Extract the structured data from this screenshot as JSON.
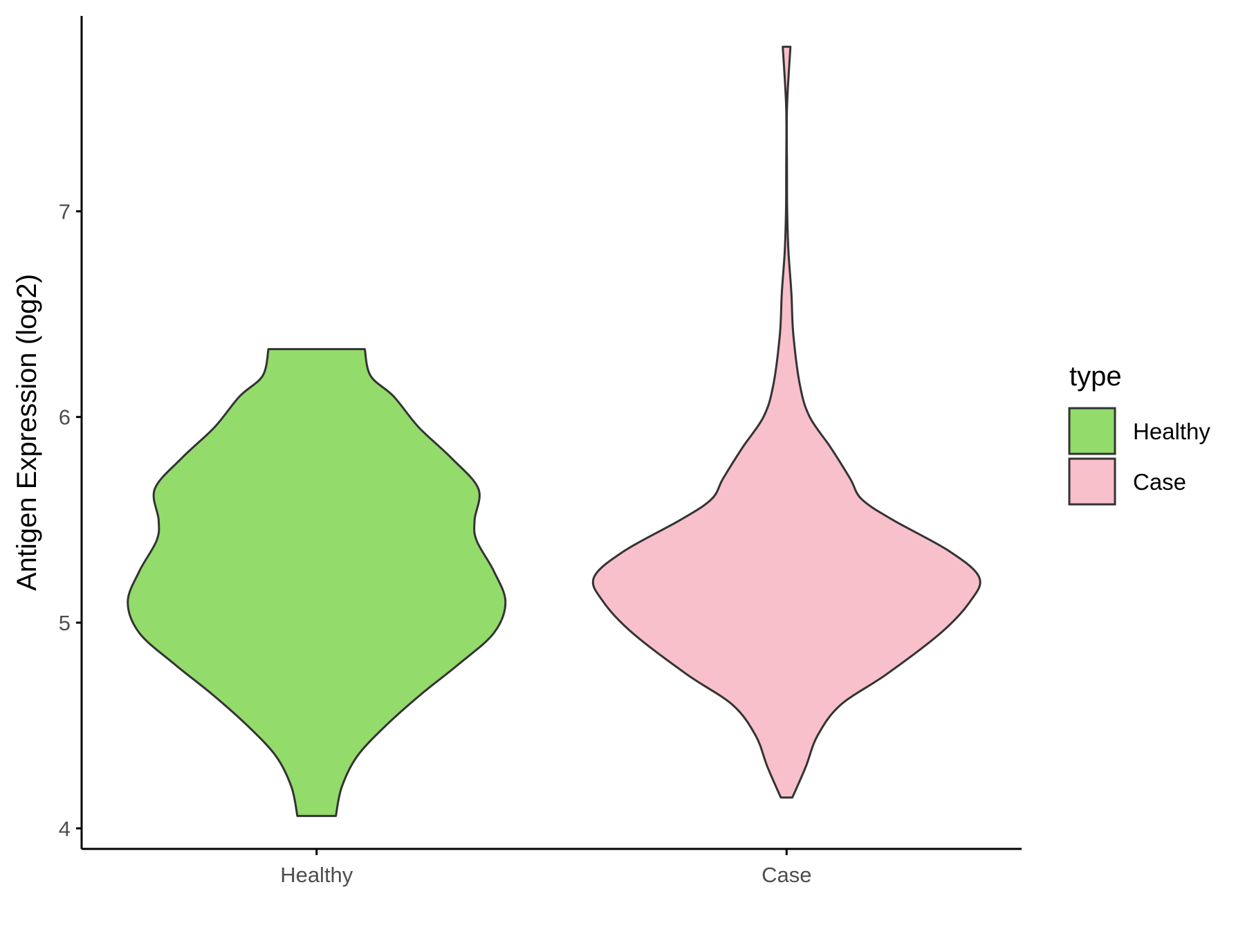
{
  "chart_data": {
    "type": "violin",
    "title": "",
    "xlabel": "",
    "ylabel": "Antigen Expression (log2)",
    "ylim": [
      3.9,
      7.95
    ],
    "yticks": [
      4,
      5,
      6,
      7
    ],
    "ytick_labels": [
      "4",
      "5",
      "6",
      "7"
    ],
    "categories": [
      "Healthy",
      "Case"
    ],
    "grid": false,
    "legend": {
      "title": "type",
      "position": "right",
      "entries": [
        {
          "label": "Healthy",
          "color": "#93DB6A"
        },
        {
          "label": "Case",
          "color": "#F7C0CB"
        }
      ]
    },
    "series": [
      {
        "name": "Healthy",
        "color": "#93DB6A",
        "min": 4.06,
        "max": 6.33,
        "density_profile": [
          [
            4.06,
            0.1
          ],
          [
            4.2,
            0.13
          ],
          [
            4.35,
            0.21
          ],
          [
            4.5,
            0.36
          ],
          [
            4.65,
            0.54
          ],
          [
            4.8,
            0.74
          ],
          [
            4.95,
            0.92
          ],
          [
            5.1,
            0.98
          ],
          [
            5.25,
            0.92
          ],
          [
            5.4,
            0.83
          ],
          [
            5.5,
            0.82
          ],
          [
            5.65,
            0.84
          ],
          [
            5.8,
            0.7
          ],
          [
            5.95,
            0.53
          ],
          [
            6.1,
            0.4
          ],
          [
            6.2,
            0.28
          ],
          [
            6.33,
            0.25
          ]
        ]
      },
      {
        "name": "Case",
        "color": "#F7C0CB",
        "min": 4.15,
        "max": 7.8,
        "density_profile": [
          [
            4.15,
            0.03
          ],
          [
            4.3,
            0.1
          ],
          [
            4.45,
            0.16
          ],
          [
            4.6,
            0.28
          ],
          [
            4.75,
            0.52
          ],
          [
            4.95,
            0.8
          ],
          [
            5.1,
            0.95
          ],
          [
            5.22,
            1.0
          ],
          [
            5.35,
            0.84
          ],
          [
            5.5,
            0.55
          ],
          [
            5.6,
            0.39
          ],
          [
            5.7,
            0.33
          ],
          [
            5.85,
            0.23
          ],
          [
            6.0,
            0.12
          ],
          [
            6.15,
            0.07
          ],
          [
            6.4,
            0.035
          ],
          [
            6.6,
            0.025
          ],
          [
            6.8,
            0.01
          ],
          [
            7.0,
            0.003
          ],
          [
            7.2,
            0.002
          ],
          [
            7.5,
            0.002
          ],
          [
            7.8,
            0.02
          ]
        ]
      }
    ]
  }
}
